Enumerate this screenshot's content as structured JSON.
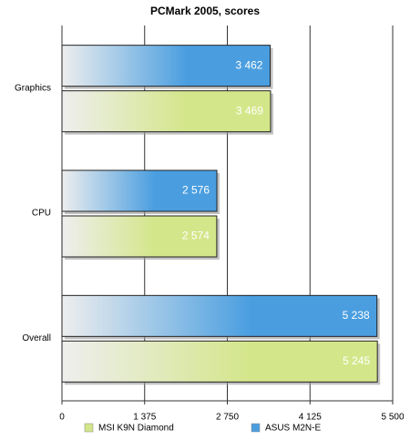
{
  "chart_data": {
    "type": "hbar",
    "title": "PCMark 2005, scores",
    "categories": [
      "Graphics",
      "CPU",
      "Overall"
    ],
    "series": [
      {
        "name": "MSI K9N Diamond",
        "color": "#d4e68a",
        "values": [
          3469,
          2574,
          5245
        ],
        "value_labels": [
          "3 469",
          "2 574",
          "5 245"
        ]
      },
      {
        "name": "ASUS M2N-E",
        "color": "#4a9ee0",
        "values": [
          3462,
          2576,
          5238
        ],
        "value_labels": [
          "3 462",
          "2 576",
          "5 238"
        ]
      }
    ],
    "xlim": [
      0,
      5500
    ],
    "xticks": [
      0,
      {
        "value": 1375,
        "label": "1 375"
      },
      {
        "value": 2750,
        "label": "2 750"
      },
      {
        "value": 4125,
        "label": "4 125"
      },
      {
        "value": 5500,
        "label": "5 500"
      }
    ],
    "grid": true
  }
}
